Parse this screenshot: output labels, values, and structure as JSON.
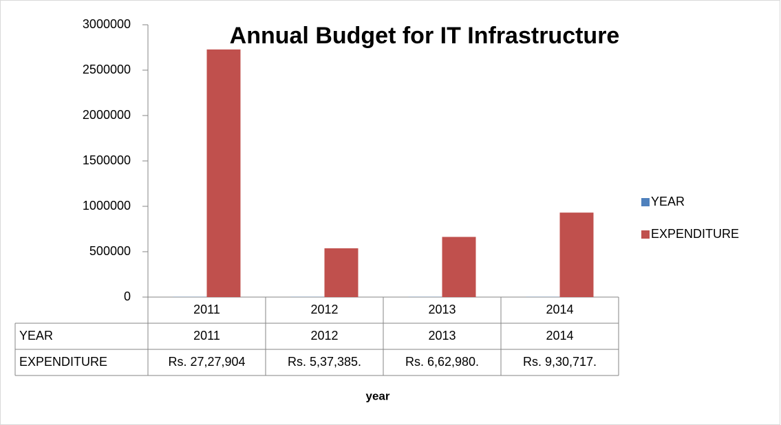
{
  "chart_data": {
    "type": "bar",
    "title": "Annual Budget for IT Infrastructure",
    "x_label": "year",
    "categories": [
      "2011",
      "2012",
      "2013",
      "2014"
    ],
    "series": [
      {
        "name": "YEAR",
        "color": "#4f81bd",
        "values": [
          2011,
          2012,
          2013,
          2014
        ]
      },
      {
        "name": "EXPENDITURE",
        "color": "#c0504d",
        "values": [
          2727904,
          537385,
          662980,
          930717
        ],
        "value_labels": [
          "Rs. 27,27,904",
          "Rs. 5,37,385.",
          "Rs. 6,62,980.",
          "Rs. 9,30,717."
        ]
      }
    ],
    "ylim": [
      0,
      3000000
    ],
    "yticks": [
      0,
      500000,
      1000000,
      1500000,
      2000000,
      2500000,
      3000000
    ],
    "grid": false,
    "legend": "right",
    "data_table": true
  }
}
